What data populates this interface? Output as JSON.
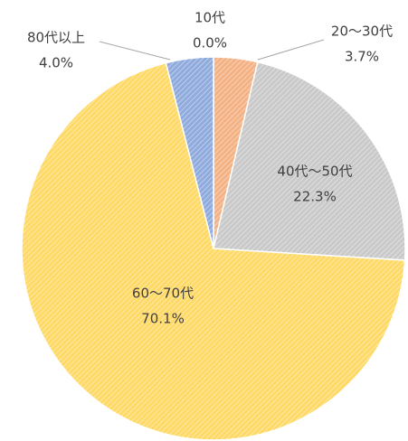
{
  "chart_data": {
    "type": "pie",
    "categories": [
      "10代",
      "20～30代",
      "40代～50代",
      "60～70代",
      "80代以上"
    ],
    "values": [
      0.0,
      3.7,
      22.3,
      70.1,
      4.0
    ],
    "value_labels": [
      "0.0%",
      "3.7%",
      "22.3%",
      "70.1%",
      "4.0%"
    ],
    "colors": [
      "#f4b183",
      "#f4b183",
      "#c9c9c9",
      "#ffd966",
      "#8faadc"
    ]
  }
}
